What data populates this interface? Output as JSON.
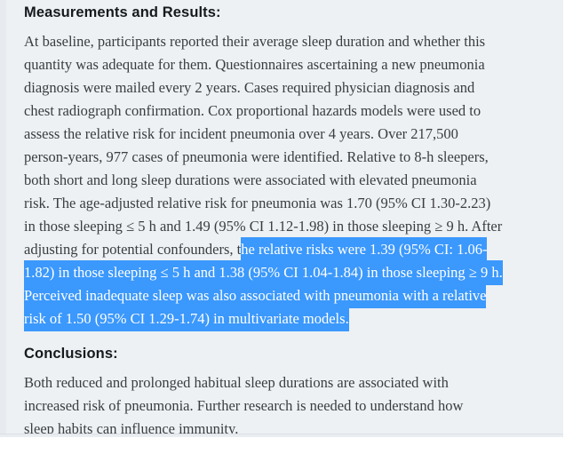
{
  "panel": {
    "background": "#eef1f4"
  },
  "selection": {
    "highlight_color": "#3b98fc",
    "text_color": "#ffffff"
  },
  "results": {
    "heading": "Measurements and Results:",
    "body_before_lines": [
      "At baseline, participants reported their average sleep duration and whether this",
      "quantity was adequate for them. Questionnaires ascertaining a new pneumonia",
      "diagnosis were mailed every 2 years. Cases required physician diagnosis and",
      "chest radiograph confirmation. Cox proportional hazards models were used to",
      "assess the relative risk for incident pneumonia over 4 years. Over 217,500",
      "person-years, 977 cases of pneumonia were identified. Relative to 8-h sleepers,",
      "both short and long sleep durations were associated with elevated pneumonia",
      "risk. The age-adjusted relative risk for pneumonia was 1.70 (95% CI 1.30-2.23)",
      "in those sleeping ≤ 5 h and 1.49 (95% CI 1.12-1.98) in those sleeping ≥ 9 h. After",
      "adjusting for potential confounders, t"
    ],
    "selected_lines": [
      "he relative risks were 1.39 (95% CI: 1.06-",
      "1.82) in those sleeping ≤ 5 h and 1.38 (95% CI 1.04-1.84) in those sleeping ≥ 9 h.",
      "Perceived inadequate sleep was also associated with pneumonia with a relative",
      "risk of 1.50 (95% CI 1.29-1.74) in multivariate models."
    ]
  },
  "conclusions": {
    "heading": "Conclusions:",
    "body_lines": [
      "Both reduced and prolonged habitual sleep durations are associated with",
      "increased risk of pneumonia. Further research is needed to understand how",
      "sleep habits can influence immunity."
    ]
  }
}
